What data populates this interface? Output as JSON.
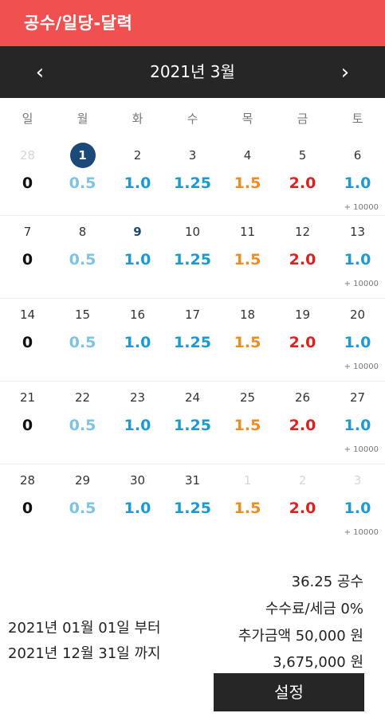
{
  "app": {
    "title": "공수/일당-달력"
  },
  "calendar": {
    "month_label": "2021년  3월",
    "prev_label": "‹",
    "next_label": "›",
    "weekdays": [
      "일",
      "월",
      "화",
      "수",
      "목",
      "금",
      "토"
    ],
    "weekday_values": [
      "0",
      "0.5",
      "1.0",
      "1.25",
      "1.5",
      "2.0",
      "1.0"
    ],
    "colors": {
      "zero": "#111111",
      "half": "#7ec4e0",
      "one": "#1a9ad6",
      "onequarter": "#1a9ad6",
      "onehalf": "#f08a24",
      "two": "#e02020",
      "today_circle": "#1b4a78",
      "accent": "#f05050",
      "bar": "#262626"
    },
    "saturday_extra": "+ 10000",
    "weeks": [
      [
        "28",
        "1",
        "2",
        "3",
        "4",
        "5",
        "6"
      ],
      [
        "7",
        "8",
        "9",
        "10",
        "11",
        "12",
        "13"
      ],
      [
        "14",
        "15",
        "16",
        "17",
        "18",
        "19",
        "20"
      ],
      [
        "21",
        "22",
        "23",
        "24",
        "25",
        "26",
        "27"
      ],
      [
        "28",
        "29",
        "30",
        "31",
        "1",
        "2",
        "3"
      ]
    ]
  },
  "summary": {
    "total_gongsu": "36.25 공수",
    "fee_tax": "수수료/세금 0%",
    "extra_amount": "추가금액 50,000 원",
    "total_amount": "3,675,000 원",
    "period_from": "2021년 01월 01일 부터",
    "period_to": "2021년 12월 31일 까지",
    "set_button": "설정"
  }
}
